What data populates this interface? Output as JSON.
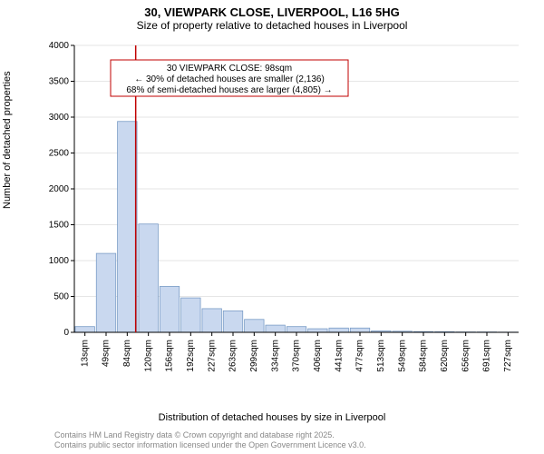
{
  "title": "30, VIEWPARK CLOSE, LIVERPOOL, L16 5HG",
  "subtitle": "Size of property relative to detached houses in Liverpool",
  "ylabel": "Number of detached properties",
  "xlabel": "Distribution of detached houses by size in Liverpool",
  "footer_line1": "Contains HM Land Registry data © Crown copyright and database right 2025.",
  "footer_line2": "Contains public sector information licensed under the Open Government Licence v3.0.",
  "annotation": {
    "line1": "30 VIEWPARK CLOSE: 98sqm",
    "line2": "← 30% of detached houses are smaller (2,136)",
    "line3": "68% of semi-detached houses are larger (4,805) →",
    "box_border": "#c00000",
    "box_bg": "#ffffff",
    "text_color": "#000000",
    "fontsize": 10
  },
  "marker_line": {
    "x_category_index": 2.4,
    "color": "#c00000",
    "width": 1.5
  },
  "chart": {
    "type": "bar",
    "plot_bg": "#ffffff",
    "axis_color": "#000000",
    "grid_color": "#cccccc",
    "bar_fill": "#c9d8ef",
    "bar_stroke": "#7a9cc6",
    "bar_width_ratio": 0.92,
    "ylim": [
      0,
      4000
    ],
    "ytick_step": 500,
    "categories": [
      "13sqm",
      "49sqm",
      "84sqm",
      "120sqm",
      "156sqm",
      "192sqm",
      "227sqm",
      "263sqm",
      "299sqm",
      "334sqm",
      "370sqm",
      "406sqm",
      "441sqm",
      "477sqm",
      "513sqm",
      "549sqm",
      "584sqm",
      "620sqm",
      "656sqm",
      "691sqm",
      "727sqm"
    ],
    "values": [
      80,
      1100,
      2940,
      1510,
      640,
      480,
      330,
      300,
      180,
      100,
      80,
      50,
      60,
      60,
      20,
      15,
      10,
      8,
      5,
      5,
      3
    ],
    "tick_fontsize": 10,
    "xlabel_rotate": -90
  }
}
